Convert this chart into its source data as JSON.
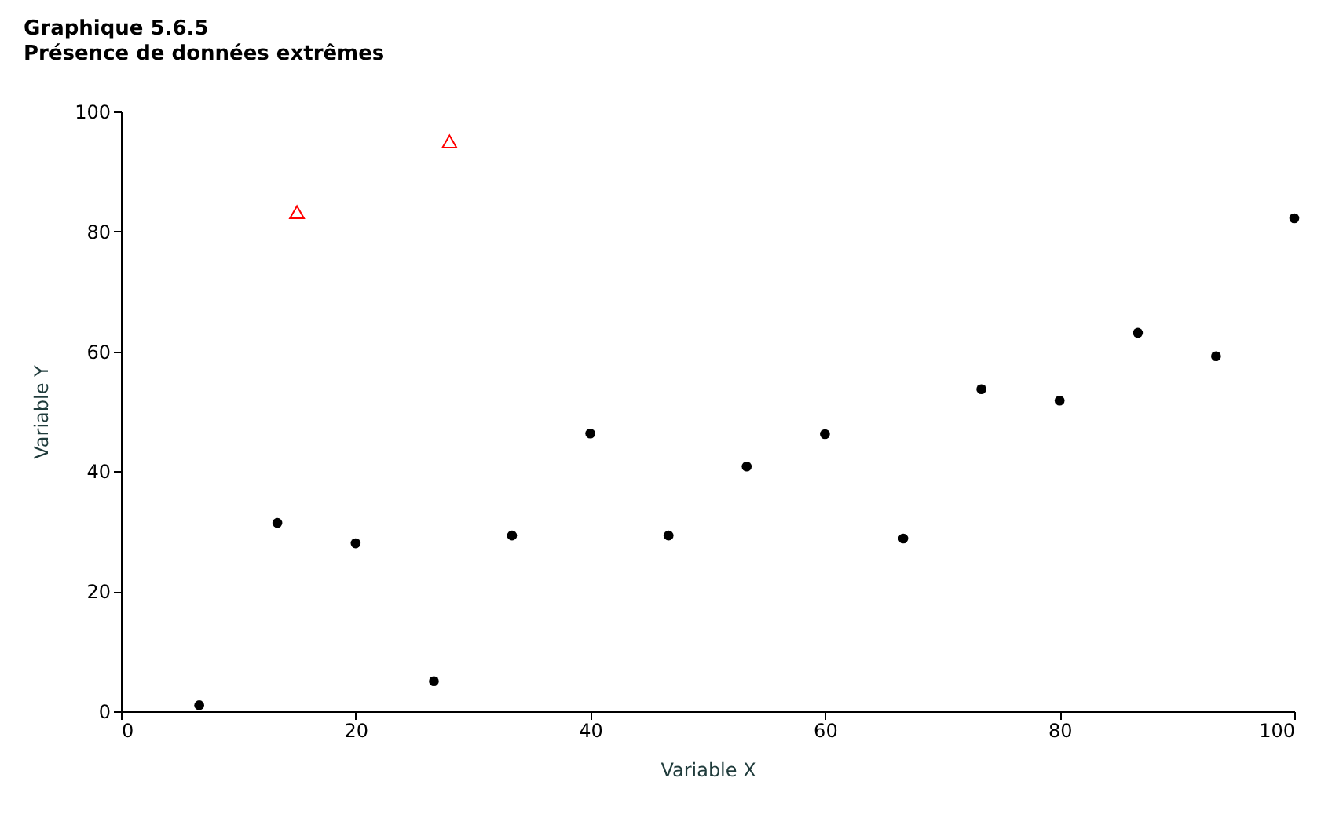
{
  "chart_data": {
    "type": "scatter",
    "title": "Graphique 5.6.5",
    "subtitle": "Présence de données extrêmes",
    "xlabel": "Variable X",
    "ylabel": "Variable Y",
    "xlim": [
      0,
      100
    ],
    "ylim": [
      0,
      100
    ],
    "xticks": [
      0,
      20,
      40,
      60,
      80,
      100
    ],
    "yticks": [
      0,
      20,
      40,
      60,
      80,
      100
    ],
    "grid": false,
    "series": [
      {
        "color": "#000000",
        "marker": "circle",
        "x": [
          6.67,
          13.33,
          20,
          26.67,
          33.33,
          40,
          46.67,
          53.33,
          60,
          66.67,
          73.33,
          80,
          86.67,
          93.33,
          100
        ],
        "values": [
          1.0,
          31.4,
          28.0,
          5.0,
          29.3,
          46.3,
          29.3,
          40.8,
          46.2,
          28.8,
          53.7,
          51.8,
          63.1,
          59.2,
          82.2
        ]
      },
      {
        "color": "#ff0000",
        "marker": "triangle",
        "x": [
          15,
          28
        ],
        "values": [
          83.2,
          95
        ]
      }
    ]
  }
}
